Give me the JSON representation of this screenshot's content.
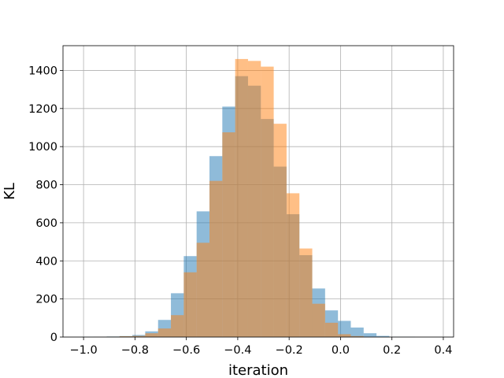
{
  "chart_data": {
    "type": "bar",
    "subtype": "overlapping-histogram",
    "title": "",
    "xlabel": "iteration",
    "ylabel": "KL",
    "xlim": [
      -1.08,
      0.44
    ],
    "ylim": [
      0,
      1530
    ],
    "xticks": [
      -1.0,
      -0.8,
      -0.6,
      -0.4,
      -0.2,
      0.0,
      0.2,
      0.4
    ],
    "xtick_labels": [
      "−1.0",
      "−0.8",
      "−0.6",
      "−0.4",
      "−0.2",
      "0.0",
      "0.2",
      "0.4"
    ],
    "yticks": [
      0,
      200,
      400,
      600,
      800,
      1000,
      1200,
      1400
    ],
    "ytick_labels": [
      "0",
      "200",
      "400",
      "600",
      "800",
      "1000",
      "1200",
      "1400"
    ],
    "grid": true,
    "legend": "none",
    "series": [
      {
        "color": "#1f77b4",
        "opacity": 0.5,
        "bin_start": -1.01,
        "bin_width": 0.05,
        "values": [
          1,
          2,
          3,
          5,
          11,
          30,
          90,
          230,
          425,
          660,
          950,
          1210,
          1370,
          1320,
          1145,
          895,
          645,
          430,
          255,
          140,
          85,
          50,
          20,
          6,
          1,
          1
        ]
      },
      {
        "color": "#ff7f0e",
        "opacity": 0.5,
        "bin_start": -0.96,
        "bin_width": 0.05,
        "values": [
          1,
          2,
          4,
          6,
          20,
          45,
          115,
          340,
          495,
          820,
          1075,
          1460,
          1450,
          1420,
          1120,
          755,
          465,
          175,
          75,
          15,
          5,
          1
        ]
      }
    ]
  }
}
